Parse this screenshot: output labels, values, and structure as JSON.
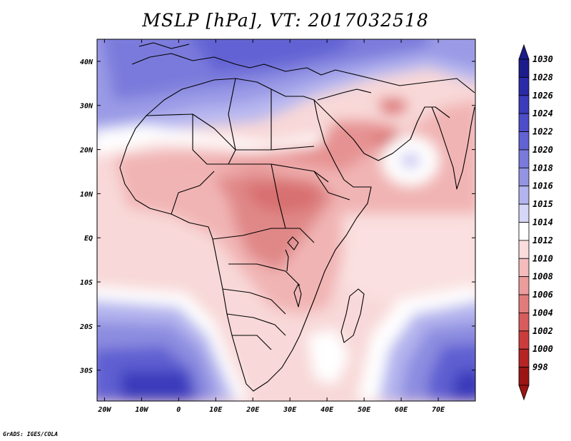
{
  "title": "MSLP [hPa], VT: 2017032518",
  "credit": "GrADS: IGES/COLA",
  "axes": {
    "lon_labels": [
      "20W",
      "10W",
      "0",
      "10E",
      "20E",
      "30E",
      "40E",
      "50E",
      "60E",
      "70E"
    ],
    "lat_labels": [
      "40N",
      "30N",
      "20N",
      "10N",
      "EQ",
      "10S",
      "20S",
      "30S"
    ],
    "lon_range": [
      -22,
      80
    ],
    "lat_range": [
      -37,
      45
    ]
  },
  "colorbar": {
    "labels": [
      "1030",
      "1028",
      "1026",
      "1024",
      "1022",
      "1020",
      "1018",
      "1016",
      "1015",
      "1014",
      "1012",
      "1010",
      "1008",
      "1006",
      "1004",
      "1002",
      "1000",
      "998"
    ],
    "colors": [
      "#1c1c8c",
      "#2a2aa8",
      "#3b3bbb",
      "#4d4dc9",
      "#6262d4",
      "#7a7adc",
      "#9494e4",
      "#b3b3ee",
      "#d6d6f7",
      "#ffffff",
      "#fadcdc",
      "#f4bcbc",
      "#ec9c9c",
      "#e27c7c",
      "#d85c5c",
      "#cc3c3c",
      "#b62424",
      "#9c1414"
    ]
  }
}
